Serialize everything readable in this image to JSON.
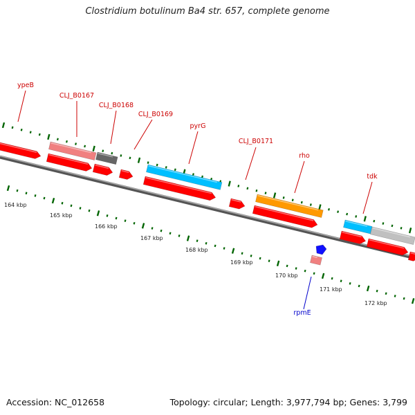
{
  "title": "Clostridium botulinum Ba4 str. 657, complete genome",
  "footer": {
    "accession": "Accession: NC_012658",
    "summary": "Topology: circular; Length: 3,977,794 bp; Genes: 3,799"
  },
  "colors": {
    "backbone": "#808080",
    "cds": "#ff0000",
    "pseudo_pink": "#f08080",
    "gray_gene": "#666666",
    "light_gray_gene": "#c0c0c0",
    "cyan_gene": "#00bfff",
    "orange_gene": "#ff9900",
    "blue_gene": "#1010ff",
    "tick": "#006400",
    "label_top": "#cc0000",
    "label_bottom": "#0000cc"
  },
  "kbp_labels": [
    "164 kbp",
    "165 kbp",
    "166 kbp",
    "167 kbp",
    "168 kbp",
    "169 kbp",
    "170 kbp",
    "171 kbp",
    "172 kbp"
  ],
  "genes": [
    {
      "name": "ypeB",
      "color": "label_top"
    },
    {
      "name": "CLJ_B0167",
      "color": "label_top"
    },
    {
      "name": "CLJ_B0168",
      "color": "label_top"
    },
    {
      "name": "CLJ_B0169",
      "color": "label_top"
    },
    {
      "name": "pyrG",
      "color": "label_top"
    },
    {
      "name": "CLJ_B0171",
      "color": "label_top"
    },
    {
      "name": "rho",
      "color": "label_top"
    },
    {
      "name": "tdk",
      "color": "label_top"
    },
    {
      "name": "rpmE",
      "color": "label_bottom"
    }
  ]
}
